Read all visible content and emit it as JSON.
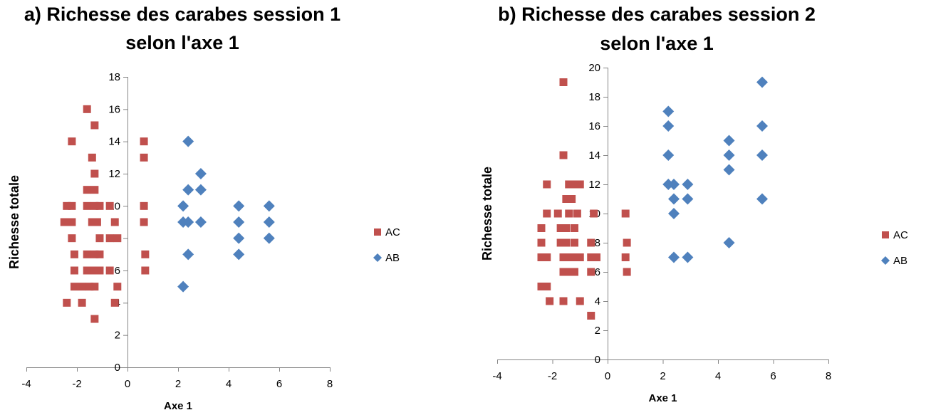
{
  "chart_data": [
    {
      "type": "scatter",
      "title_lines": [
        "a) Richesse des carabes session 1",
        "selon l'axe 1"
      ],
      "xlabel": "Axe 1",
      "ylabel": "Richesse totale",
      "xlim": [
        -4,
        8
      ],
      "ylim": [
        0,
        18
      ],
      "xticks": [
        "-4",
        "-2",
        "0",
        "2",
        "4",
        "6",
        "8"
      ],
      "yticks": [
        "0",
        "2",
        "4",
        "6",
        "8",
        "10",
        "12",
        "14",
        "16",
        "18"
      ],
      "legend_position": "right",
      "series": [
        {
          "name": "AC",
          "marker": "square",
          "color": "#c0504d",
          "points": [
            [
              -1.6,
              16
            ],
            [
              -1.3,
              15
            ],
            [
              -2.2,
              14
            ],
            [
              -1.4,
              13
            ],
            [
              -1.3,
              12
            ],
            [
              -1.6,
              11
            ],
            [
              -1.3,
              11
            ],
            [
              -2.4,
              10
            ],
            [
              -2.2,
              10
            ],
            [
              -1.6,
              10
            ],
            [
              -1.3,
              10
            ],
            [
              -1.1,
              10
            ],
            [
              -0.7,
              10
            ],
            [
              -2.5,
              9
            ],
            [
              -2.2,
              9
            ],
            [
              -1.4,
              9
            ],
            [
              -1.2,
              9
            ],
            [
              -0.5,
              9
            ],
            [
              -2.2,
              8
            ],
            [
              -1.1,
              8
            ],
            [
              -0.7,
              8
            ],
            [
              -0.4,
              8
            ],
            [
              -2.1,
              7
            ],
            [
              -1.6,
              7
            ],
            [
              -1.3,
              7
            ],
            [
              -1.1,
              7
            ],
            [
              -2.1,
              6
            ],
            [
              -1.6,
              6
            ],
            [
              -1.3,
              6
            ],
            [
              -1.1,
              6
            ],
            [
              -0.7,
              6
            ],
            [
              -2.1,
              5
            ],
            [
              -1.8,
              5
            ],
            [
              -1.5,
              5
            ],
            [
              -1.3,
              5
            ],
            [
              -0.4,
              5
            ],
            [
              -2.4,
              4
            ],
            [
              -1.8,
              4
            ],
            [
              -0.5,
              4
            ],
            [
              -1.3,
              3
            ],
            [
              0.65,
              14
            ],
            [
              0.65,
              13
            ],
            [
              0.65,
              10
            ],
            [
              0.65,
              9
            ],
            [
              0.7,
              7
            ],
            [
              0.7,
              6
            ]
          ]
        },
        {
          "name": "AB",
          "marker": "diamond",
          "color": "#4f81bd",
          "points": [
            [
              2.4,
              14
            ],
            [
              2.9,
              12
            ],
            [
              2.4,
              11
            ],
            [
              2.9,
              11
            ],
            [
              2.2,
              10
            ],
            [
              4.4,
              10
            ],
            [
              5.6,
              10
            ],
            [
              2.2,
              9
            ],
            [
              2.4,
              9
            ],
            [
              2.9,
              9
            ],
            [
              4.4,
              9
            ],
            [
              5.6,
              9
            ],
            [
              4.4,
              8
            ],
            [
              5.6,
              8
            ],
            [
              2.4,
              7
            ],
            [
              4.4,
              7
            ],
            [
              2.2,
              5
            ]
          ]
        }
      ]
    },
    {
      "type": "scatter",
      "title_lines": [
        "b) Richesse des carabes session 2",
        "selon l'axe 1"
      ],
      "xlabel": "Axe 1",
      "ylabel": "Richesse totale",
      "xlim": [
        -4,
        8
      ],
      "ylim": [
        0,
        20
      ],
      "xticks": [
        "-4",
        "-2",
        "0",
        "2",
        "4",
        "6",
        "8"
      ],
      "yticks": [
        "0",
        "2",
        "4",
        "6",
        "8",
        "10",
        "12",
        "14",
        "16",
        "18",
        "20"
      ],
      "legend_position": "right",
      "series": [
        {
          "name": "AC",
          "marker": "square",
          "color": "#c0504d",
          "points": [
            [
              -1.6,
              19
            ],
            [
              -1.6,
              14
            ],
            [
              -2.2,
              12
            ],
            [
              -1.4,
              12
            ],
            [
              -1.2,
              12
            ],
            [
              -1.0,
              12
            ],
            [
              -1.5,
              11
            ],
            [
              -1.3,
              11
            ],
            [
              -2.2,
              10
            ],
            [
              -1.8,
              10
            ],
            [
              -1.4,
              10
            ],
            [
              -1.1,
              10
            ],
            [
              -0.5,
              10
            ],
            [
              -1.7,
              9
            ],
            [
              -1.5,
              9
            ],
            [
              -1.2,
              9
            ],
            [
              -2.4,
              9
            ],
            [
              -2.4,
              8
            ],
            [
              -1.7,
              8
            ],
            [
              -1.5,
              8
            ],
            [
              -1.2,
              8
            ],
            [
              -0.6,
              8
            ],
            [
              -2.4,
              7
            ],
            [
              -2.2,
              7
            ],
            [
              -1.6,
              7
            ],
            [
              -1.4,
              7
            ],
            [
              -1.2,
              7
            ],
            [
              -1.0,
              7
            ],
            [
              -0.6,
              7
            ],
            [
              -0.4,
              7
            ],
            [
              -1.6,
              6
            ],
            [
              -1.4,
              6
            ],
            [
              -1.2,
              6
            ],
            [
              -0.6,
              6
            ],
            [
              -2.4,
              5
            ],
            [
              -2.2,
              5
            ],
            [
              -2.1,
              4
            ],
            [
              -1.6,
              4
            ],
            [
              -1.0,
              4
            ],
            [
              -0.6,
              3
            ],
            [
              0.65,
              10
            ],
            [
              0.7,
              8
            ],
            [
              0.65,
              7
            ],
            [
              0.7,
              6
            ]
          ]
        },
        {
          "name": "AB",
          "marker": "diamond",
          "color": "#4f81bd",
          "points": [
            [
              5.6,
              19
            ],
            [
              2.2,
              17
            ],
            [
              2.2,
              16
            ],
            [
              5.6,
              16
            ],
            [
              4.4,
              15
            ],
            [
              2.2,
              14
            ],
            [
              4.4,
              14
            ],
            [
              5.6,
              14
            ],
            [
              4.4,
              13
            ],
            [
              2.2,
              12
            ],
            [
              2.4,
              12
            ],
            [
              2.9,
              12
            ],
            [
              2.4,
              11
            ],
            [
              2.9,
              11
            ],
            [
              5.6,
              11
            ],
            [
              2.4,
              10
            ],
            [
              4.4,
              8
            ],
            [
              2.4,
              7
            ],
            [
              2.9,
              7
            ]
          ]
        }
      ]
    }
  ]
}
